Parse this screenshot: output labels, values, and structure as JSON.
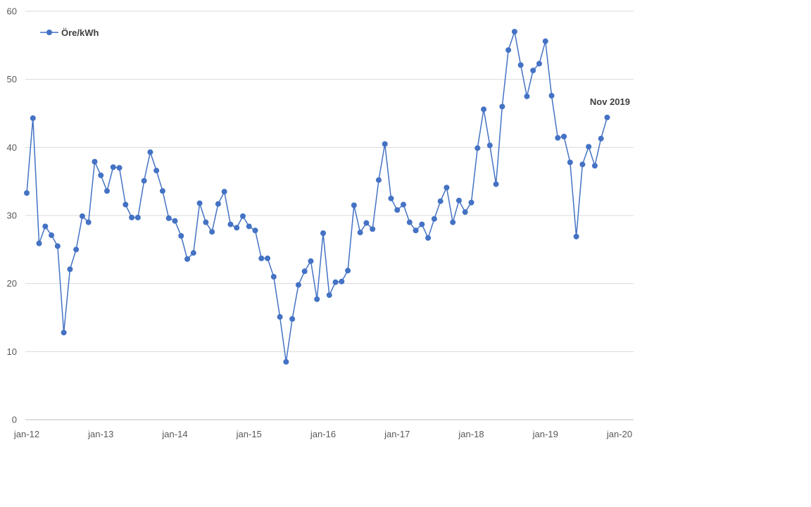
{
  "chart_data": {
    "type": "line",
    "title": "",
    "xlabel": "",
    "ylabel": "",
    "ylim": [
      0,
      60
    ],
    "yticks": [
      0,
      10,
      20,
      30,
      40,
      50,
      60
    ],
    "xlim": [
      "2012-01",
      "2020-01"
    ],
    "xticks": [
      "jan-12",
      "jan-13",
      "jan-14",
      "jan-15",
      "jan-16",
      "jan-17",
      "jan-18",
      "jan-19",
      "jan-20"
    ],
    "grid": "horizontal",
    "legend_position": "top-left",
    "color": "#4472C4",
    "series": [
      {
        "name": "Öre/kWh",
        "x": [
          "2012-01",
          "2012-02",
          "2012-03",
          "2012-04",
          "2012-05",
          "2012-06",
          "2012-07",
          "2012-08",
          "2012-09",
          "2012-10",
          "2012-11",
          "2012-12",
          "2013-01",
          "2013-02",
          "2013-03",
          "2013-04",
          "2013-05",
          "2013-06",
          "2013-07",
          "2013-08",
          "2013-09",
          "2013-10",
          "2013-11",
          "2013-12",
          "2014-01",
          "2014-02",
          "2014-03",
          "2014-04",
          "2014-05",
          "2014-06",
          "2014-07",
          "2014-08",
          "2014-09",
          "2014-10",
          "2014-11",
          "2014-12",
          "2015-01",
          "2015-02",
          "2015-03",
          "2015-04",
          "2015-05",
          "2015-06",
          "2015-07",
          "2015-08",
          "2015-09",
          "2015-10",
          "2015-11",
          "2015-12",
          "2016-01",
          "2016-02",
          "2016-03",
          "2016-04",
          "2016-05",
          "2016-06",
          "2016-07",
          "2016-08",
          "2016-09",
          "2016-10",
          "2016-11",
          "2016-12",
          "2017-01",
          "2017-02",
          "2017-03",
          "2017-04",
          "2017-05",
          "2017-06",
          "2017-07",
          "2017-08",
          "2017-09",
          "2017-10",
          "2017-11",
          "2017-12",
          "2018-01",
          "2018-02",
          "2018-03",
          "2018-04",
          "2018-05",
          "2018-06",
          "2018-07",
          "2018-08",
          "2018-09",
          "2018-10",
          "2018-11",
          "2018-12",
          "2019-01",
          "2019-02",
          "2019-03",
          "2019-04",
          "2019-05",
          "2019-06",
          "2019-07",
          "2019-08",
          "2019-09",
          "2019-10",
          "2019-11"
        ],
        "values": [
          33.3,
          44.3,
          25.9,
          28.4,
          27.1,
          25.5,
          12.8,
          22.1,
          25.0,
          29.9,
          29.0,
          37.9,
          35.9,
          33.6,
          37.1,
          37.0,
          31.6,
          29.7,
          29.7,
          35.1,
          39.3,
          36.6,
          33.6,
          29.6,
          29.2,
          27.0,
          23.6,
          24.5,
          31.8,
          29.0,
          27.6,
          31.7,
          33.5,
          28.7,
          28.2,
          29.9,
          28.4,
          27.8,
          23.7,
          23.7,
          21.0,
          15.1,
          8.5,
          14.8,
          19.8,
          21.8,
          23.3,
          17.7,
          27.4,
          18.3,
          20.2,
          20.3,
          21.9,
          31.5,
          27.5,
          28.9,
          28.0,
          35.2,
          40.5,
          32.5,
          30.8,
          31.6,
          29.0,
          27.8,
          28.7,
          26.7,
          29.5,
          32.1,
          34.1,
          29.0,
          32.2,
          30.5,
          31.9,
          39.9,
          45.6,
          40.3,
          34.6,
          46.0,
          54.3,
          57.0,
          52.1,
          47.5,
          51.3,
          52.3,
          55.6,
          47.6,
          41.4,
          41.6,
          37.8,
          26.9,
          37.5,
          40.1,
          37.3,
          41.3,
          44.4
        ]
      }
    ],
    "annotations": [
      {
        "text": "Nov 2019",
        "x": "2019-11",
        "y": 44.4
      }
    ]
  }
}
